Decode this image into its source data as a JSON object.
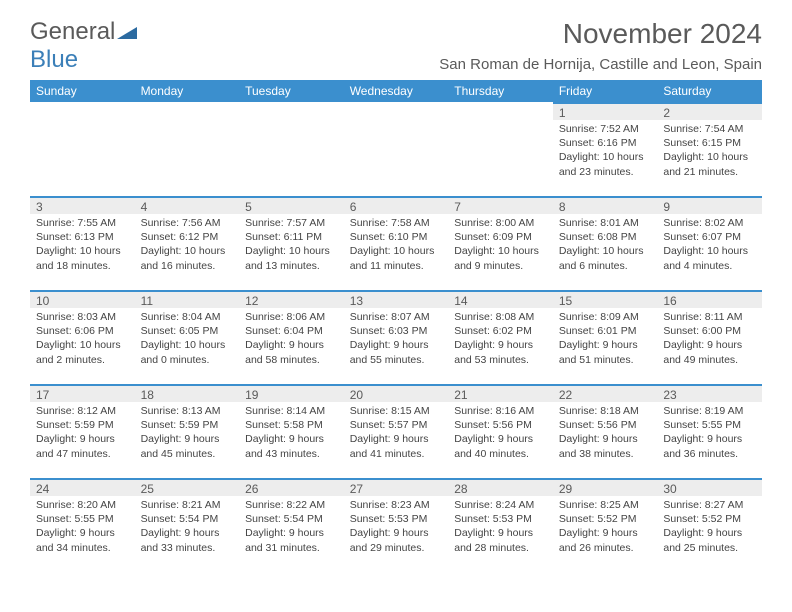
{
  "logo": {
    "main": "General",
    "sub": "Blue"
  },
  "header": {
    "title": "November 2024",
    "location": "San Roman de Hornija, Castille and Leon, Spain"
  },
  "colors": {
    "header_bg": "#3b8fce",
    "header_text": "#ffffff",
    "daynum_bg": "#ededed",
    "daynum_border": "#3b8fce",
    "text": "#5a5a5a",
    "body_text": "#444444",
    "logo_blue": "#3b7fb8"
  },
  "typography": {
    "title_fontsize": 28,
    "subtitle_fontsize": 15,
    "dayheader_fontsize": 12,
    "daynum_fontsize": 12,
    "daydata_fontsize": 10.5
  },
  "calendar": {
    "columns": [
      "Sunday",
      "Monday",
      "Tuesday",
      "Wednesday",
      "Thursday",
      "Friday",
      "Saturday"
    ],
    "weeks": [
      [
        null,
        null,
        null,
        null,
        null,
        {
          "n": "1",
          "sunrise": "7:52 AM",
          "sunset": "6:16 PM",
          "daylight": "10 hours and 23 minutes."
        },
        {
          "n": "2",
          "sunrise": "7:54 AM",
          "sunset": "6:15 PM",
          "daylight": "10 hours and 21 minutes."
        }
      ],
      [
        {
          "n": "3",
          "sunrise": "7:55 AM",
          "sunset": "6:13 PM",
          "daylight": "10 hours and 18 minutes."
        },
        {
          "n": "4",
          "sunrise": "7:56 AM",
          "sunset": "6:12 PM",
          "daylight": "10 hours and 16 minutes."
        },
        {
          "n": "5",
          "sunrise": "7:57 AM",
          "sunset": "6:11 PM",
          "daylight": "10 hours and 13 minutes."
        },
        {
          "n": "6",
          "sunrise": "7:58 AM",
          "sunset": "6:10 PM",
          "daylight": "10 hours and 11 minutes."
        },
        {
          "n": "7",
          "sunrise": "8:00 AM",
          "sunset": "6:09 PM",
          "daylight": "10 hours and 9 minutes."
        },
        {
          "n": "8",
          "sunrise": "8:01 AM",
          "sunset": "6:08 PM",
          "daylight": "10 hours and 6 minutes."
        },
        {
          "n": "9",
          "sunrise": "8:02 AM",
          "sunset": "6:07 PM",
          "daylight": "10 hours and 4 minutes."
        }
      ],
      [
        {
          "n": "10",
          "sunrise": "8:03 AM",
          "sunset": "6:06 PM",
          "daylight": "10 hours and 2 minutes."
        },
        {
          "n": "11",
          "sunrise": "8:04 AM",
          "sunset": "6:05 PM",
          "daylight": "10 hours and 0 minutes."
        },
        {
          "n": "12",
          "sunrise": "8:06 AM",
          "sunset": "6:04 PM",
          "daylight": "9 hours and 58 minutes."
        },
        {
          "n": "13",
          "sunrise": "8:07 AM",
          "sunset": "6:03 PM",
          "daylight": "9 hours and 55 minutes."
        },
        {
          "n": "14",
          "sunrise": "8:08 AM",
          "sunset": "6:02 PM",
          "daylight": "9 hours and 53 minutes."
        },
        {
          "n": "15",
          "sunrise": "8:09 AM",
          "sunset": "6:01 PM",
          "daylight": "9 hours and 51 minutes."
        },
        {
          "n": "16",
          "sunrise": "8:11 AM",
          "sunset": "6:00 PM",
          "daylight": "9 hours and 49 minutes."
        }
      ],
      [
        {
          "n": "17",
          "sunrise": "8:12 AM",
          "sunset": "5:59 PM",
          "daylight": "9 hours and 47 minutes."
        },
        {
          "n": "18",
          "sunrise": "8:13 AM",
          "sunset": "5:59 PM",
          "daylight": "9 hours and 45 minutes."
        },
        {
          "n": "19",
          "sunrise": "8:14 AM",
          "sunset": "5:58 PM",
          "daylight": "9 hours and 43 minutes."
        },
        {
          "n": "20",
          "sunrise": "8:15 AM",
          "sunset": "5:57 PM",
          "daylight": "9 hours and 41 minutes."
        },
        {
          "n": "21",
          "sunrise": "8:16 AM",
          "sunset": "5:56 PM",
          "daylight": "9 hours and 40 minutes."
        },
        {
          "n": "22",
          "sunrise": "8:18 AM",
          "sunset": "5:56 PM",
          "daylight": "9 hours and 38 minutes."
        },
        {
          "n": "23",
          "sunrise": "8:19 AM",
          "sunset": "5:55 PM",
          "daylight": "9 hours and 36 minutes."
        }
      ],
      [
        {
          "n": "24",
          "sunrise": "8:20 AM",
          "sunset": "5:55 PM",
          "daylight": "9 hours and 34 minutes."
        },
        {
          "n": "25",
          "sunrise": "8:21 AM",
          "sunset": "5:54 PM",
          "daylight": "9 hours and 33 minutes."
        },
        {
          "n": "26",
          "sunrise": "8:22 AM",
          "sunset": "5:54 PM",
          "daylight": "9 hours and 31 minutes."
        },
        {
          "n": "27",
          "sunrise": "8:23 AM",
          "sunset": "5:53 PM",
          "daylight": "9 hours and 29 minutes."
        },
        {
          "n": "28",
          "sunrise": "8:24 AM",
          "sunset": "5:53 PM",
          "daylight": "9 hours and 28 minutes."
        },
        {
          "n": "29",
          "sunrise": "8:25 AM",
          "sunset": "5:52 PM",
          "daylight": "9 hours and 26 minutes."
        },
        {
          "n": "30",
          "sunrise": "8:27 AM",
          "sunset": "5:52 PM",
          "daylight": "9 hours and 25 minutes."
        }
      ]
    ]
  },
  "labels": {
    "sunrise": "Sunrise: ",
    "sunset": "Sunset: ",
    "daylight": "Daylight: "
  }
}
